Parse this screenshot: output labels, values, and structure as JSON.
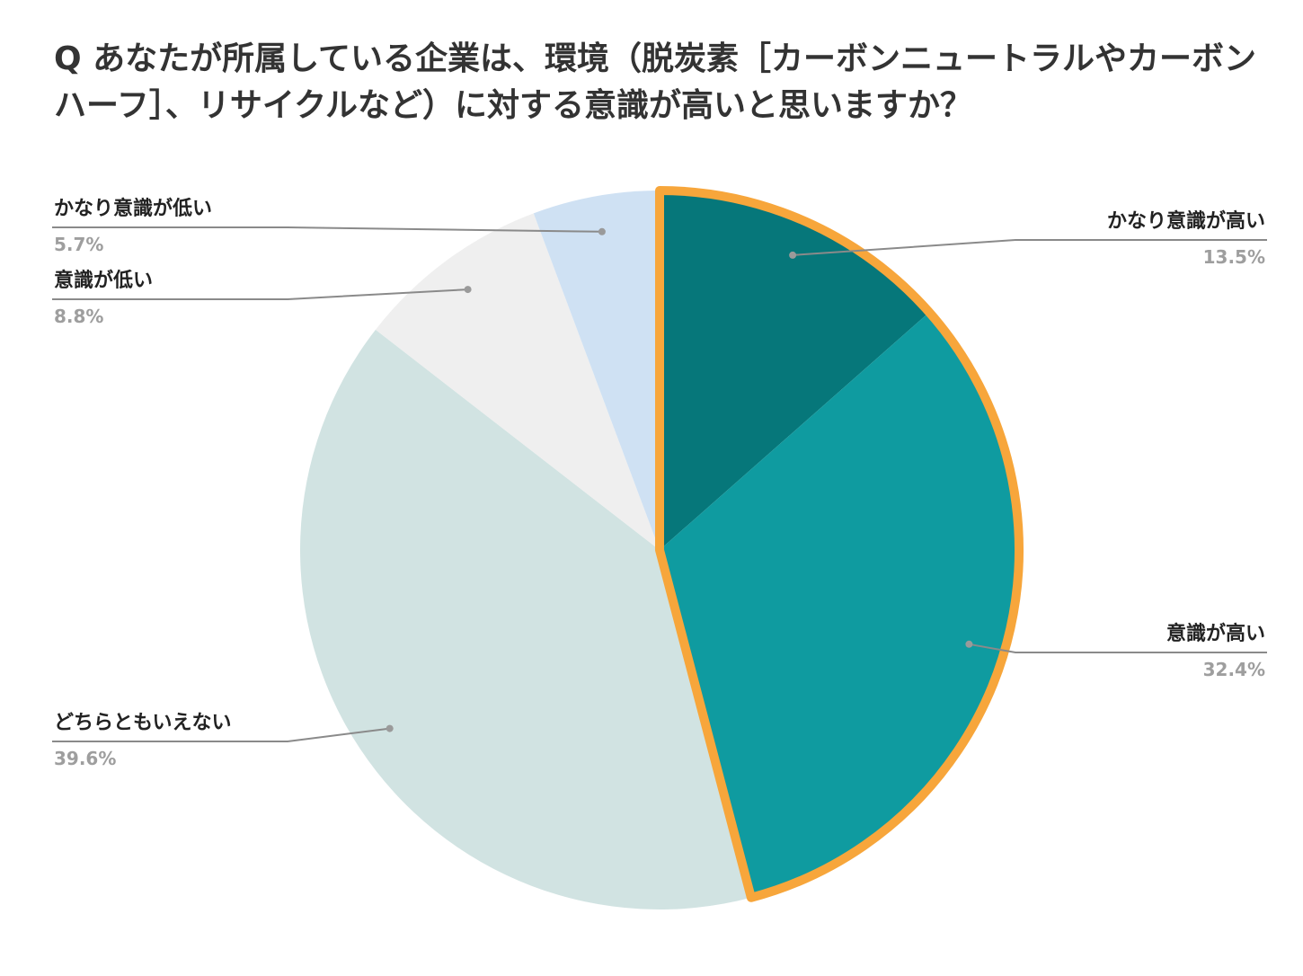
{
  "title": "Q あなたが所属している企業は、環境（脱炭素［カーボンニュートラルやカーボンハーフ］、リサイクルなど）に対する意識が高いと思いますか？",
  "chart_data": {
    "type": "pie",
    "start_angle_deg": 0,
    "direction": "clockwise",
    "slices": [
      {
        "label": "かなり意識が高い",
        "value": 13.5,
        "display": "13.5%",
        "color": "#06777a",
        "highlight": true,
        "label_side": "right"
      },
      {
        "label": "意識が高い",
        "value": 32.4,
        "display": "32.4%",
        "color": "#0f9ba0",
        "highlight": true,
        "label_side": "right"
      },
      {
        "label": "どちらともいえない",
        "value": 39.6,
        "display": "39.6%",
        "color": "#d1e3e2",
        "highlight": false,
        "label_side": "left"
      },
      {
        "label": "意識が低い",
        "value": 8.8,
        "display": "8.8%",
        "color": "#efefef",
        "highlight": false,
        "label_side": "left"
      },
      {
        "label": "かなり意識が低い",
        "value": 5.7,
        "display": "5.7%",
        "color": "#cfe1f3",
        "highlight": false,
        "label_side": "left"
      }
    ],
    "highlight_color": "#f7a63b"
  }
}
